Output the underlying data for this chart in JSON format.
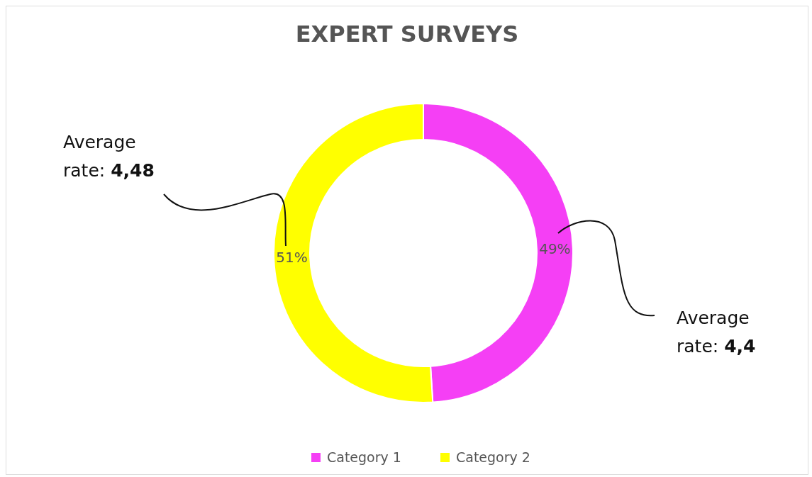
{
  "chart_data": {
    "type": "donut",
    "title": "EXPERT SURVEYS",
    "categories": [
      "Category 1",
      "Category 2"
    ],
    "values": [
      49,
      51
    ],
    "value_labels": [
      "49%",
      "51%"
    ],
    "colors": [
      "#f53ff5",
      "#ffff00"
    ],
    "legend": "bottom",
    "annotations": [
      "Average rate: 4,48",
      "Average rate: 4,4"
    ]
  }
}
